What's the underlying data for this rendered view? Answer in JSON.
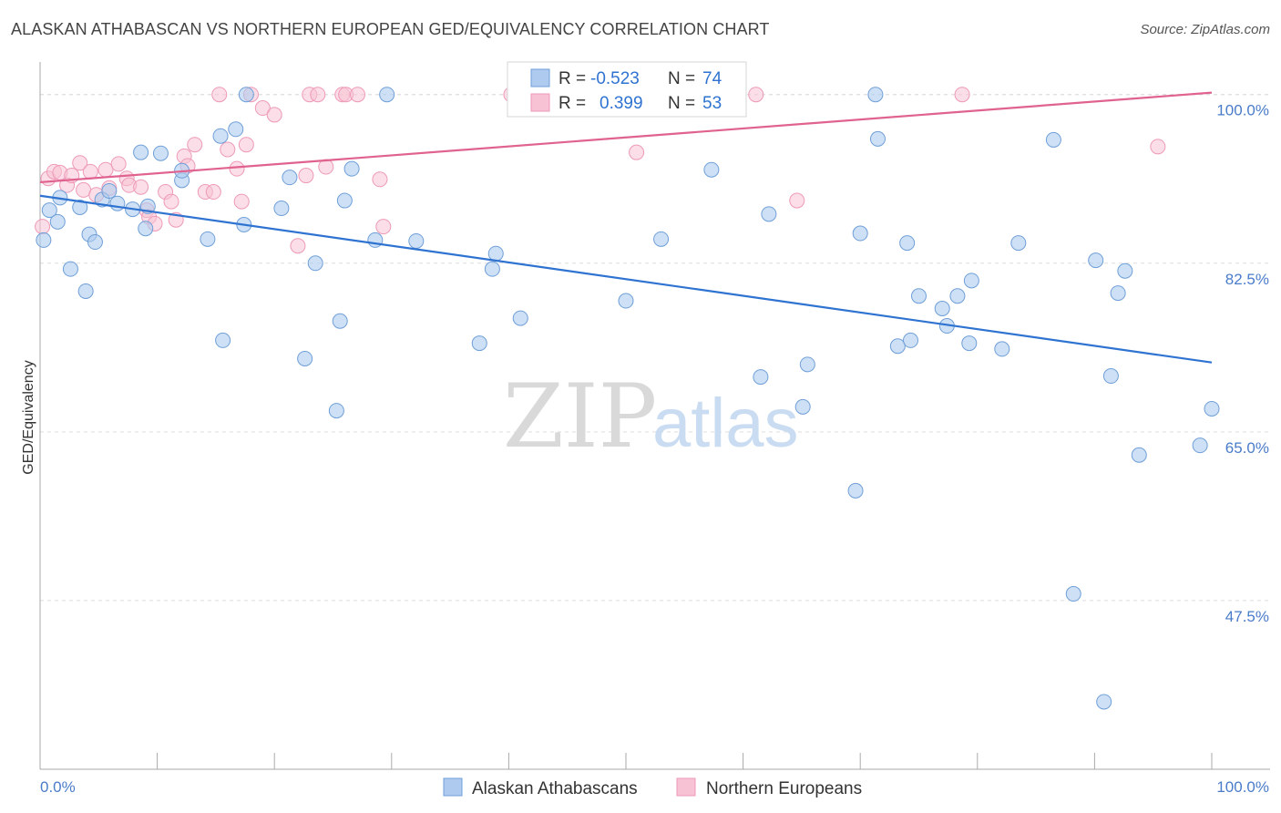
{
  "title": "ALASKAN ATHABASCAN VS NORTHERN EUROPEAN GED/EQUIVALENCY CORRELATION CHART",
  "source": "Source: ZipAtlas.com",
  "watermark": {
    "zip": "ZIP",
    "atlas": "atlas"
  },
  "legend": {
    "row1": {
      "r_label": "R =",
      "r_value": "-0.523",
      "n_label": "N =",
      "n_value": "74"
    },
    "row2": {
      "r_label": "R =",
      "r_value": "0.399",
      "n_label": "N =",
      "n_value": "53"
    }
  },
  "bottom_legend": [
    "Alaskan Athabascans",
    "Northern Europeans"
  ],
  "colors": {
    "blue_fill": "#aecbef",
    "blue_stroke": "#6f9fd8",
    "blue_line": "#2f73d1",
    "pink_fill": "#f7c3d4",
    "pink_stroke": "#ee9ab8",
    "pink_line": "#e0628f",
    "value_text": "#2f73d1",
    "grid": "#dddddd"
  },
  "chart_data": {
    "type": "scatter",
    "xlabel": "",
    "ylabel": "GED/Equivalency",
    "xlim": [
      0,
      100
    ],
    "ylim": [
      30,
      103
    ],
    "x_tick_labels": [
      "0.0%",
      "100.0%"
    ],
    "y_ticks": [
      47.5,
      65.0,
      82.5,
      100.0
    ],
    "y_tick_labels": [
      "47.5%",
      "65.0%",
      "82.5%",
      "100.0%"
    ],
    "grid": true,
    "legend_placement": "top-center",
    "series": [
      {
        "name": "Alaskan Athabascans",
        "trend": {
          "x": [
            0,
            100
          ],
          "y": [
            89.5,
            72.2
          ]
        },
        "points": [
          {
            "x": 0.3,
            "y": 84.9
          },
          {
            "x": 0.8,
            "y": 88.0
          },
          {
            "x": 1.5,
            "y": 86.8
          },
          {
            "x": 1.7,
            "y": 89.3
          },
          {
            "x": 2.6,
            "y": 81.9
          },
          {
            "x": 3.4,
            "y": 88.3
          },
          {
            "x": 3.9,
            "y": 79.6
          },
          {
            "x": 4.2,
            "y": 85.5
          },
          {
            "x": 4.7,
            "y": 84.7
          },
          {
            "x": 5.3,
            "y": 89.1
          },
          {
            "x": 5.9,
            "y": 90.0
          },
          {
            "x": 6.6,
            "y": 88.7
          },
          {
            "x": 7.9,
            "y": 88.1
          },
          {
            "x": 8.6,
            "y": 94.0
          },
          {
            "x": 9.0,
            "y": 86.1
          },
          {
            "x": 9.2,
            "y": 88.4
          },
          {
            "x": 10.3,
            "y": 93.9
          },
          {
            "x": 12.1,
            "y": 91.1
          },
          {
            "x": 12.1,
            "y": 92.1
          },
          {
            "x": 14.3,
            "y": 85.0
          },
          {
            "x": 15.4,
            "y": 95.7
          },
          {
            "x": 15.6,
            "y": 74.5
          },
          {
            "x": 16.7,
            "y": 96.4
          },
          {
            "x": 17.4,
            "y": 86.5
          },
          {
            "x": 17.6,
            "y": 100.0
          },
          {
            "x": 20.6,
            "y": 88.2
          },
          {
            "x": 21.3,
            "y": 91.4
          },
          {
            "x": 22.6,
            "y": 72.6
          },
          {
            "x": 23.5,
            "y": 82.5
          },
          {
            "x": 25.3,
            "y": 67.2
          },
          {
            "x": 25.6,
            "y": 76.5
          },
          {
            "x": 26.0,
            "y": 89.0
          },
          {
            "x": 26.6,
            "y": 92.3
          },
          {
            "x": 28.6,
            "y": 84.9
          },
          {
            "x": 29.6,
            "y": 100.0
          },
          {
            "x": 32.1,
            "y": 84.8
          },
          {
            "x": 37.5,
            "y": 74.2
          },
          {
            "x": 38.6,
            "y": 81.9
          },
          {
            "x": 38.9,
            "y": 83.5
          },
          {
            "x": 41.0,
            "y": 76.8
          },
          {
            "x": 50.0,
            "y": 78.6
          },
          {
            "x": 53.0,
            "y": 85.0
          },
          {
            "x": 57.3,
            "y": 92.2
          },
          {
            "x": 61.5,
            "y": 70.7
          },
          {
            "x": 62.2,
            "y": 87.6
          },
          {
            "x": 65.1,
            "y": 67.6
          },
          {
            "x": 65.5,
            "y": 72.0
          },
          {
            "x": 69.6,
            "y": 58.9
          },
          {
            "x": 70.0,
            "y": 85.6
          },
          {
            "x": 71.3,
            "y": 100.0
          },
          {
            "x": 71.5,
            "y": 95.4
          },
          {
            "x": 73.2,
            "y": 73.9
          },
          {
            "x": 74.0,
            "y": 84.6
          },
          {
            "x": 74.3,
            "y": 74.5
          },
          {
            "x": 75.0,
            "y": 79.1
          },
          {
            "x": 77.0,
            "y": 77.8
          },
          {
            "x": 77.4,
            "y": 76.0
          },
          {
            "x": 78.3,
            "y": 79.1
          },
          {
            "x": 79.3,
            "y": 74.2
          },
          {
            "x": 79.5,
            "y": 80.7
          },
          {
            "x": 82.1,
            "y": 73.6
          },
          {
            "x": 83.5,
            "y": 84.6
          },
          {
            "x": 86.5,
            "y": 95.3
          },
          {
            "x": 88.2,
            "y": 48.2
          },
          {
            "x": 90.1,
            "y": 82.8
          },
          {
            "x": 90.8,
            "y": 37.0
          },
          {
            "x": 91.4,
            "y": 70.8
          },
          {
            "x": 92.0,
            "y": 79.4
          },
          {
            "x": 92.6,
            "y": 81.7
          },
          {
            "x": 93.8,
            "y": 62.6
          },
          {
            "x": 100.0,
            "y": 67.4
          },
          {
            "x": 99.0,
            "y": 63.6
          }
        ]
      },
      {
        "name": "Northern Europeans",
        "trend": {
          "x": [
            0,
            100
          ],
          "y": [
            90.9,
            100.2
          ]
        },
        "points": [
          {
            "x": 0.2,
            "y": 86.3
          },
          {
            "x": 0.7,
            "y": 91.3
          },
          {
            "x": 1.2,
            "y": 92.0
          },
          {
            "x": 1.7,
            "y": 91.9
          },
          {
            "x": 2.3,
            "y": 90.6
          },
          {
            "x": 2.7,
            "y": 91.6
          },
          {
            "x": 3.4,
            "y": 92.9
          },
          {
            "x": 3.7,
            "y": 90.1
          },
          {
            "x": 4.3,
            "y": 92.0
          },
          {
            "x": 4.8,
            "y": 89.6
          },
          {
            "x": 5.6,
            "y": 92.2
          },
          {
            "x": 5.9,
            "y": 90.3
          },
          {
            "x": 6.7,
            "y": 92.8
          },
          {
            "x": 7.4,
            "y": 91.3
          },
          {
            "x": 7.6,
            "y": 90.6
          },
          {
            "x": 8.6,
            "y": 90.4
          },
          {
            "x": 9.1,
            "y": 88.0
          },
          {
            "x": 9.3,
            "y": 87.3
          },
          {
            "x": 9.8,
            "y": 86.6
          },
          {
            "x": 10.7,
            "y": 89.9
          },
          {
            "x": 11.2,
            "y": 88.9
          },
          {
            "x": 11.6,
            "y": 87.0
          },
          {
            "x": 12.3,
            "y": 93.6
          },
          {
            "x": 12.6,
            "y": 92.6
          },
          {
            "x": 13.2,
            "y": 94.8
          },
          {
            "x": 14.1,
            "y": 89.9
          },
          {
            "x": 14.8,
            "y": 89.9
          },
          {
            "x": 15.3,
            "y": 100.0
          },
          {
            "x": 16.0,
            "y": 94.3
          },
          {
            "x": 16.8,
            "y": 92.3
          },
          {
            "x": 17.2,
            "y": 88.9
          },
          {
            "x": 17.6,
            "y": 94.8
          },
          {
            "x": 18.0,
            "y": 100.0
          },
          {
            "x": 19.0,
            "y": 98.6
          },
          {
            "x": 20.0,
            "y": 97.9
          },
          {
            "x": 22.0,
            "y": 84.3
          },
          {
            "x": 22.7,
            "y": 91.6
          },
          {
            "x": 23.0,
            "y": 100.0
          },
          {
            "x": 23.7,
            "y": 100.0
          },
          {
            "x": 24.4,
            "y": 92.5
          },
          {
            "x": 25.8,
            "y": 100.0
          },
          {
            "x": 26.1,
            "y": 100.0
          },
          {
            "x": 27.1,
            "y": 100.0
          },
          {
            "x": 29.0,
            "y": 91.2
          },
          {
            "x": 29.3,
            "y": 86.3
          },
          {
            "x": 40.2,
            "y": 100.0
          },
          {
            "x": 50.9,
            "y": 94.0
          },
          {
            "x": 61.1,
            "y": 100.0
          },
          {
            "x": 64.6,
            "y": 89.0
          },
          {
            "x": 78.7,
            "y": 100.0
          },
          {
            "x": 95.4,
            "y": 94.6
          }
        ]
      }
    ]
  }
}
